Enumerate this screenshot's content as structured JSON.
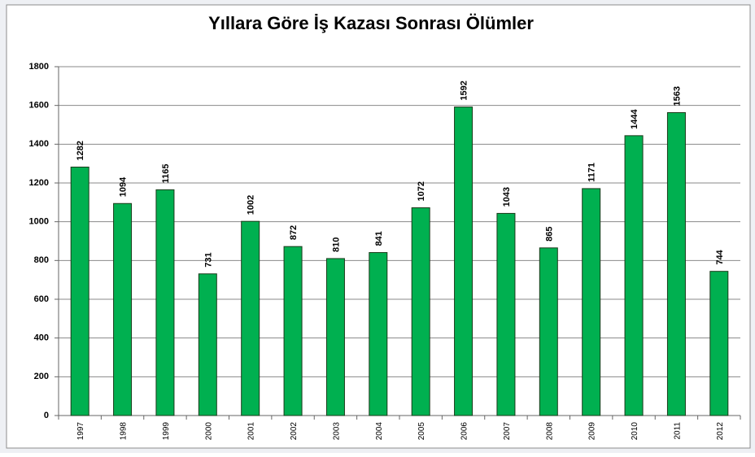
{
  "chart_data": {
    "type": "bar",
    "title": "Yıllara Göre İş Kazası Sonrası Ölümler",
    "categories": [
      "1997",
      "1998",
      "1999",
      "2000",
      "2001",
      "2002",
      "2003",
      "2004",
      "2005",
      "2006",
      "2007",
      "2008",
      "2009",
      "2010",
      "2011",
      "2012"
    ],
    "values": [
      1282,
      1094,
      1165,
      731,
      1002,
      872,
      810,
      841,
      1072,
      1592,
      1043,
      865,
      1171,
      1444,
      1563,
      744
    ],
    "color": "#00b050",
    "ylim": [
      0,
      1800
    ],
    "yticks": [
      0,
      200,
      400,
      600,
      800,
      1000,
      1200,
      1400,
      1600,
      1800
    ],
    "grid": true
  }
}
